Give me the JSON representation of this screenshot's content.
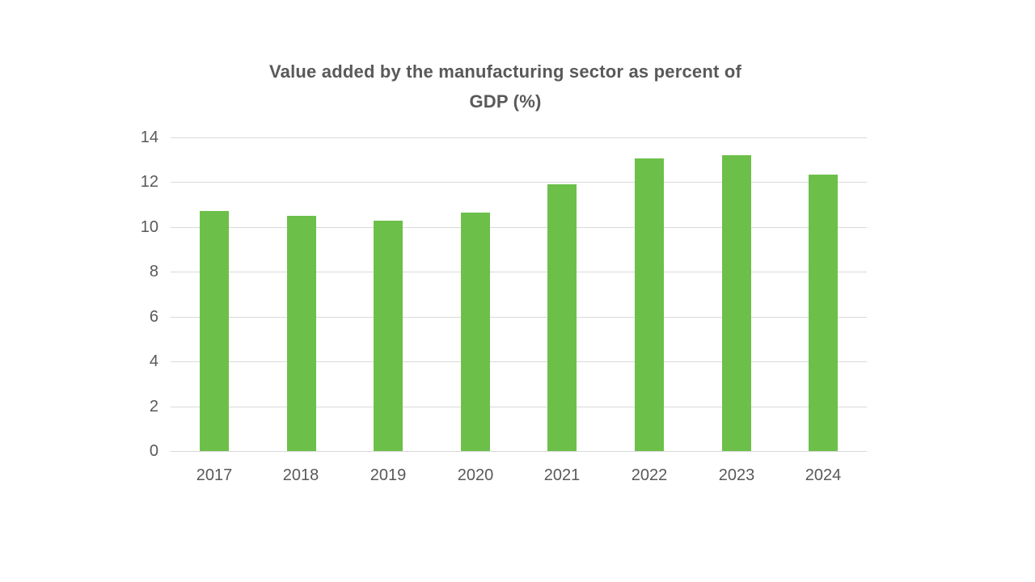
{
  "chart_data": {
    "type": "bar",
    "title": "Value added by the manufacturing sector as percent of GDP (%)",
    "title_lines": [
      "Value added by the manufacturing sector as percent of",
      "GDP (%)"
    ],
    "categories": [
      "2017",
      "2018",
      "2019",
      "2020",
      "2021",
      "2022",
      "2023",
      "2024"
    ],
    "values": [
      10.7,
      10.5,
      10.3,
      10.65,
      11.9,
      13.05,
      13.2,
      12.35
    ],
    "series_name": "Value added by the manufacturing sector as percent of GDP (%)",
    "xlabel": "",
    "ylabel": "",
    "ylim": [
      0,
      14
    ],
    "yticks": [
      0,
      2,
      4,
      6,
      8,
      10,
      12,
      14
    ],
    "grid": true,
    "legend": false,
    "bar_color": "#6CC04A",
    "gridline_color": "#D9D9D9",
    "tick_label_color": "#595959",
    "title_color": "#595959",
    "background_color": "#FFFFFF"
  }
}
